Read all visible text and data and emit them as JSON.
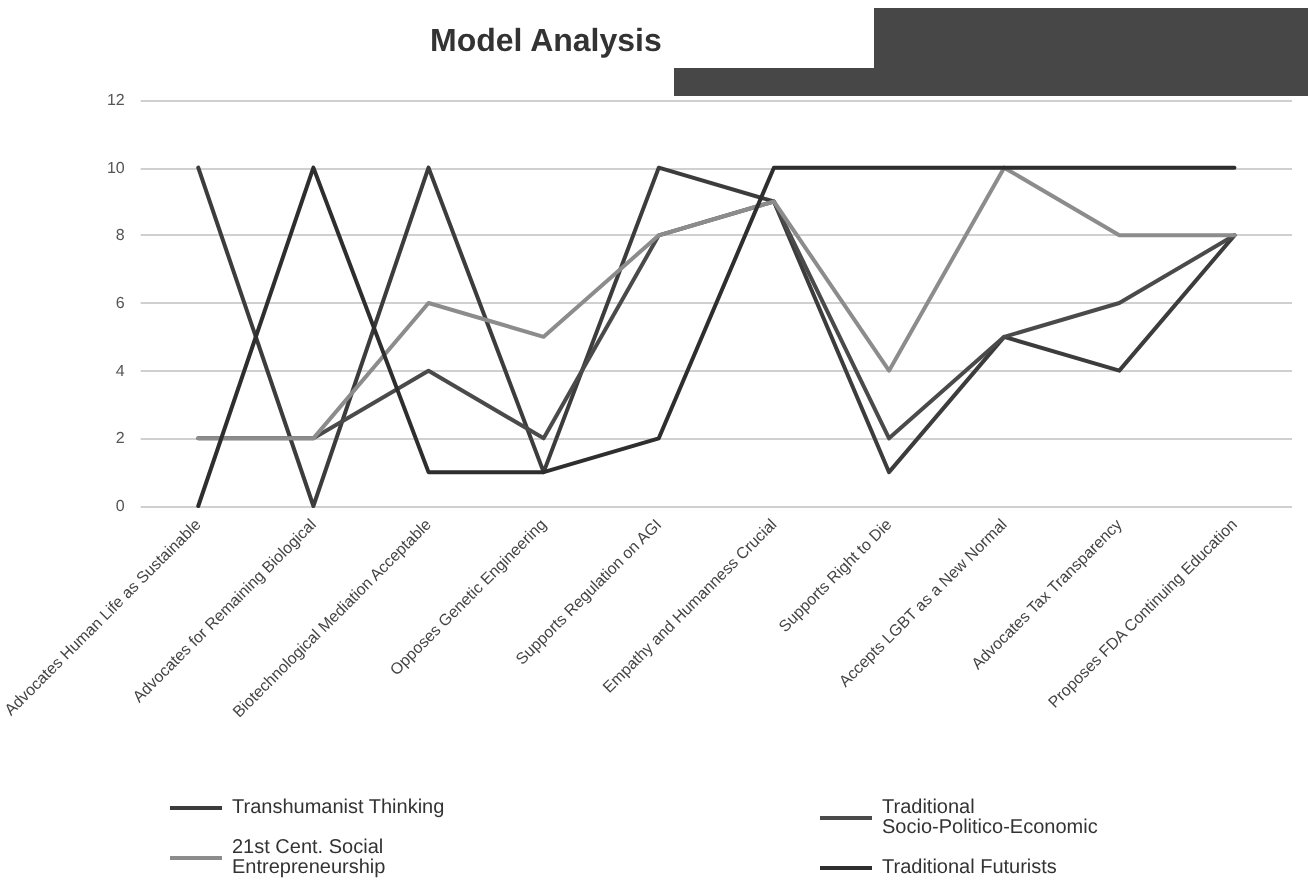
{
  "chart_data": {
    "type": "line",
    "title": "Model Analysis",
    "categories": [
      "Advocates Human Life as Sustainable",
      "Advocates for Remaining Biological",
      "Biotechnological Mediation Acceptable",
      "Opposes Genetic Engineering",
      "Supports Regulation on AGI",
      "Empathy and Humanness Crucial",
      "Supports Right to Die",
      "Accepts LGBT as a New Normal",
      "Advocates Tax Transparency",
      "Proposes FDA Continuing Education"
    ],
    "series": [
      {
        "name": "Transhumanist Thinking",
        "color": "#3c3c3c",
        "values": [
          10,
          0,
          10,
          1,
          10,
          9,
          1,
          5,
          4,
          8
        ]
      },
      {
        "name": "Traditional Socio-Politico-Economic",
        "color": "#4a4a4a",
        "values": [
          2,
          2,
          4,
          2,
          8,
          9,
          2,
          5,
          6,
          8
        ]
      },
      {
        "name": "21st Cent. Social Entrepreneurship",
        "color": "#8c8c8c",
        "values": [
          2,
          2,
          6,
          5,
          8,
          9,
          4,
          10,
          8,
          8
        ]
      },
      {
        "name": "Traditional Futurists",
        "color": "#2e2e2e",
        "values": [
          0,
          10,
          1,
          1,
          2,
          10,
          10,
          10,
          10,
          10
        ]
      }
    ],
    "ylim": [
      0,
      12
    ],
    "yticks": [
      0,
      2,
      4,
      6,
      8,
      10,
      12
    ],
    "grid": "y",
    "legend": "bottom",
    "marker": "none",
    "line_style": "solid"
  }
}
